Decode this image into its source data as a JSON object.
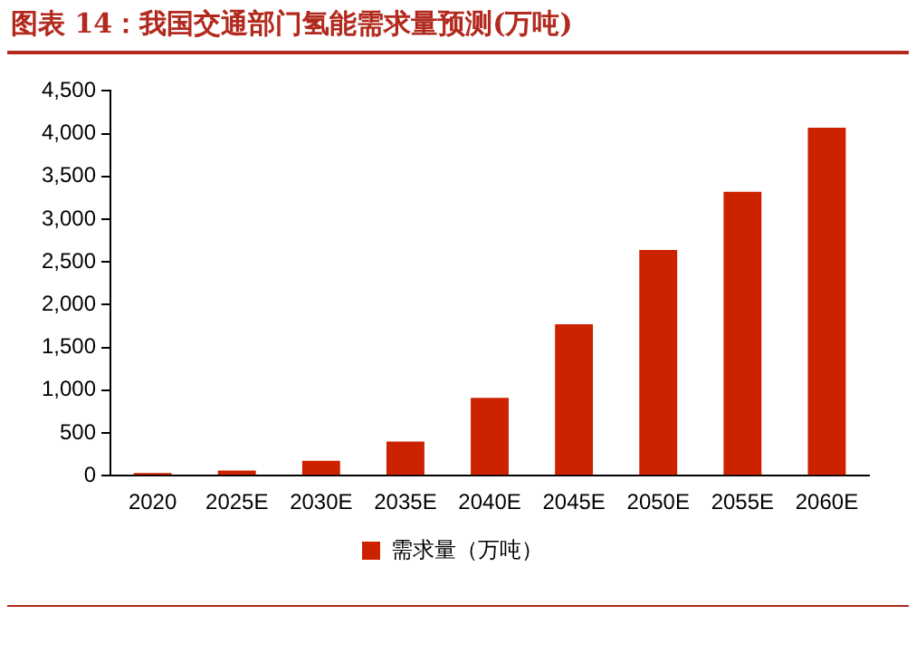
{
  "chart_data": {
    "type": "bar",
    "title": "图表 14：我国交通部门氢能需求量预测(万吨)",
    "categories": [
      "2020",
      "2025E",
      "2030E",
      "2035E",
      "2040E",
      "2045E",
      "2050E",
      "2055E",
      "2060E"
    ],
    "series": [
      {
        "name": "需求量（万吨）",
        "color": "#cc2200",
        "values": [
          30,
          60,
          175,
          400,
          910,
          1770,
          2640,
          3320,
          4070
        ]
      }
    ],
    "ylim": [
      0,
      4500
    ],
    "yticks": [
      {
        "value": 0,
        "label": "0"
      },
      {
        "value": 500,
        "label": "500"
      },
      {
        "value": 1000,
        "label": "1,000"
      },
      {
        "value": 1500,
        "label": "1,500"
      },
      {
        "value": 2000,
        "label": "2,000"
      },
      {
        "value": 2500,
        "label": "2,500"
      },
      {
        "value": 3000,
        "label": "3,000"
      },
      {
        "value": 3500,
        "label": "3,500"
      },
      {
        "value": 4000,
        "label": "4,000"
      },
      {
        "value": 4500,
        "label": "4,500"
      }
    ],
    "grid": false,
    "legend": "bottom"
  }
}
